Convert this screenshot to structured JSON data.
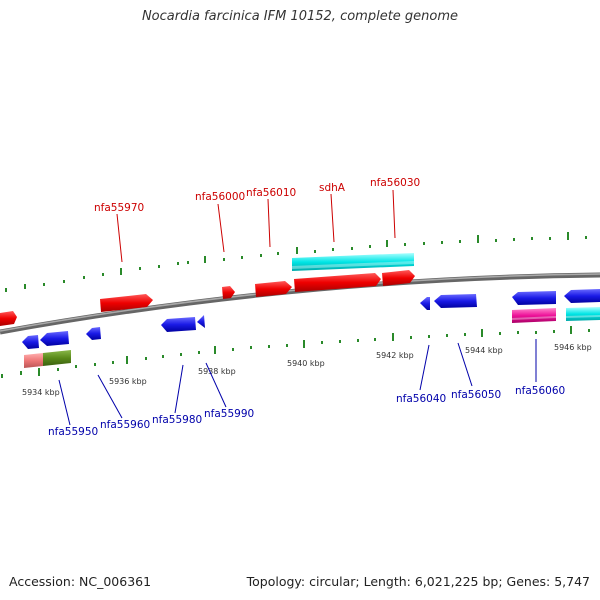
{
  "title": "Nocardia farcinica IFM 10152, complete genome",
  "accession": "Accession: NC_006361",
  "summary": "Topology: circular; Length: 6,021,225 bp; Genes: 5,747",
  "scale_labels": [
    {
      "text": "5934 kbp"
    },
    {
      "text": "5936 kbp"
    },
    {
      "text": "5938 kbp"
    },
    {
      "text": "5940 kbp"
    },
    {
      "text": "5942 kbp"
    },
    {
      "text": "5944 kbp"
    },
    {
      "text": "5946 kbp"
    }
  ],
  "gene_labels_top": [
    {
      "text": "nfa55970"
    },
    {
      "text": "nfa56000"
    },
    {
      "text": "nfa56010"
    },
    {
      "text": "sdhA"
    },
    {
      "text": "nfa56030"
    }
  ],
  "gene_labels_bottom": [
    {
      "text": "nfa55950"
    },
    {
      "text": "nfa55960"
    },
    {
      "text": "nfa55980"
    },
    {
      "text": "nfa55990"
    },
    {
      "text": "nfa56040"
    },
    {
      "text": "nfa56050"
    },
    {
      "text": "nfa56060"
    }
  ],
  "colors": {
    "forward_gene": "#ee0000",
    "reverse_gene": "#1a1ae6",
    "highlight_cyan": "#00e5e5",
    "highlight_magenta": "#ee1199",
    "highlight_pink": "#ee7777",
    "highlight_olive": "#5a8a1a",
    "tick": "#2a8a2a",
    "backbone": "#888888"
  }
}
